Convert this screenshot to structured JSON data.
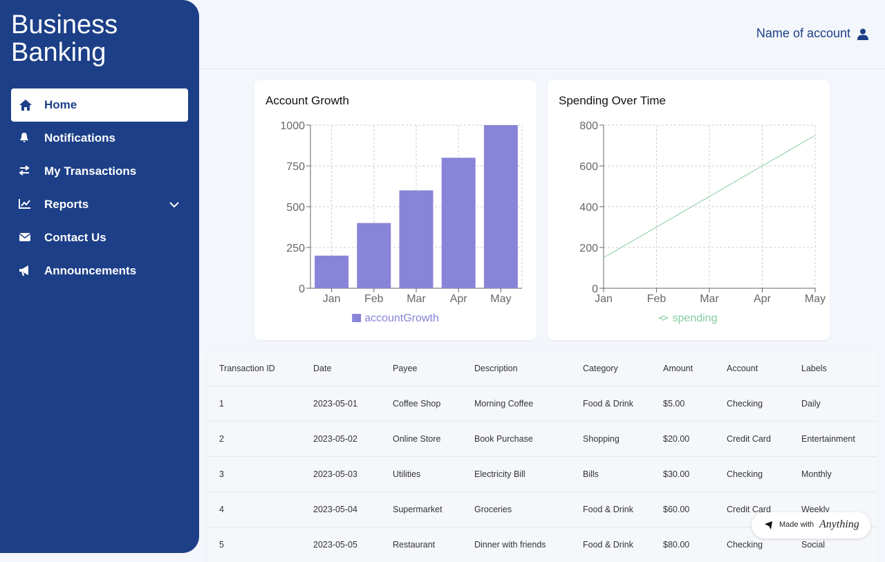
{
  "sidebar": {
    "title": "Business Banking",
    "nav": [
      "Home",
      "Notifications",
      "My Transactions",
      "Reports",
      "Contact Us",
      "Announcements"
    ]
  },
  "header": {
    "account": "Name of account"
  },
  "chart_data": [
    {
      "type": "bar",
      "title": "Account Growth",
      "categories": [
        "Jan",
        "Feb",
        "Mar",
        "Apr",
        "May"
      ],
      "series": [
        {
          "name": "accountGrowth",
          "color": "#8884d8",
          "values": [
            200,
            400,
            600,
            800,
            1000
          ]
        }
      ],
      "ylim": [
        0,
        1000
      ],
      "yticks": [
        0,
        250,
        500,
        750,
        1000
      ],
      "grid": true
    },
    {
      "type": "line",
      "title": "Spending Over Time",
      "categories": [
        "Jan",
        "Feb",
        "Mar",
        "Apr",
        "May"
      ],
      "series": [
        {
          "name": "spending",
          "color": "#82ca9d",
          "values": [
            150,
            300,
            450,
            600,
            750
          ]
        }
      ],
      "ylim": [
        0,
        800
      ],
      "yticks": [
        0,
        200,
        400,
        600,
        800
      ],
      "grid": true
    }
  ],
  "table": {
    "headers": [
      "Transaction ID",
      "Date",
      "Payee",
      "Description",
      "Category",
      "Amount",
      "Account",
      "Labels"
    ],
    "rows": [
      [
        "1",
        "2023-05-01",
        "Coffee Shop",
        "Morning Coffee",
        "Food & Drink",
        "$5.00",
        "Checking",
        "Daily"
      ],
      [
        "2",
        "2023-05-02",
        "Online Store",
        "Book Purchase",
        "Shopping",
        "$20.00",
        "Credit Card",
        "Entertainment"
      ],
      [
        "3",
        "2023-05-03",
        "Utilities",
        "Electricity Bill",
        "Bills",
        "$30.00",
        "Checking",
        "Monthly"
      ],
      [
        "4",
        "2023-05-04",
        "Supermarket",
        "Groceries",
        "Food & Drink",
        "$60.00",
        "Credit Card",
        "Weekly"
      ],
      [
        "5",
        "2023-05-05",
        "Restaurant",
        "Dinner with friends",
        "Food & Drink",
        "$80.00",
        "Checking",
        "Social"
      ]
    ]
  },
  "badge": {
    "text": "Made with",
    "brand": "Anything"
  }
}
